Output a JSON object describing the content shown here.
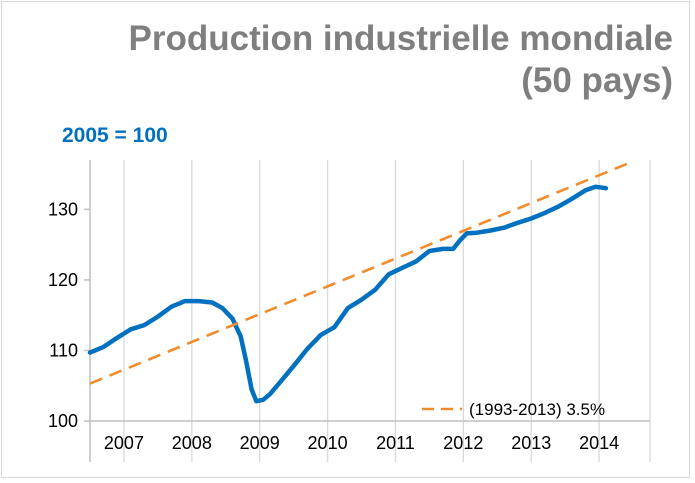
{
  "chart_data": {
    "type": "line",
    "title": "Production industrielle mondiale",
    "subtitle": "(50 pays)",
    "ylabel": "2005 = 100",
    "xlabel": "",
    "ylim": [
      100,
      137
    ],
    "yticks": [
      100,
      110,
      120,
      130
    ],
    "xlim": [
      2006.5,
      2014.75
    ],
    "categories": [
      "2007",
      "2008",
      "2009",
      "2010",
      "2011",
      "2012",
      "2013",
      "2014"
    ],
    "grid": "vertical",
    "legend": "bottom-right",
    "series": [
      {
        "name": "",
        "style": "solid",
        "color": "#0070c0",
        "x": [
          2006.5,
          2006.7,
          2006.9,
          2007.1,
          2007.3,
          2007.5,
          2007.7,
          2007.9,
          2008.1,
          2008.3,
          2008.45,
          2008.6,
          2008.72,
          2008.8,
          2008.88,
          2008.95,
          2009.05,
          2009.15,
          2009.3,
          2009.5,
          2009.7,
          2009.9,
          2010.1,
          2010.3,
          2010.5,
          2010.7,
          2010.9,
          2011.1,
          2011.3,
          2011.5,
          2011.7,
          2011.85,
          2011.95,
          2012.05,
          2012.2,
          2012.4,
          2012.6,
          2012.8,
          2013.0,
          2013.2,
          2013.4,
          2013.6,
          2013.8,
          2013.95,
          2014.1
        ],
        "values": [
          109.7,
          110.5,
          111.8,
          113.0,
          113.6,
          114.8,
          116.2,
          117.0,
          117.0,
          116.8,
          116.0,
          114.5,
          112.0,
          108.5,
          104.5,
          102.8,
          103.0,
          103.8,
          105.5,
          107.8,
          110.2,
          112.2,
          113.3,
          116.0,
          117.2,
          118.6,
          120.8,
          121.7,
          122.6,
          124.1,
          124.4,
          124.4,
          125.6,
          126.6,
          126.7,
          127.0,
          127.4,
          128.1,
          128.7,
          129.5,
          130.4,
          131.5,
          132.7,
          133.2,
          133.0
        ]
      },
      {
        "name": "(1993-2013) 3.5%",
        "style": "dashed",
        "color": "#f08c2c",
        "x": [
          2006.5,
          2014.5
        ],
        "values": [
          105.3,
          136.8
        ]
      }
    ]
  }
}
